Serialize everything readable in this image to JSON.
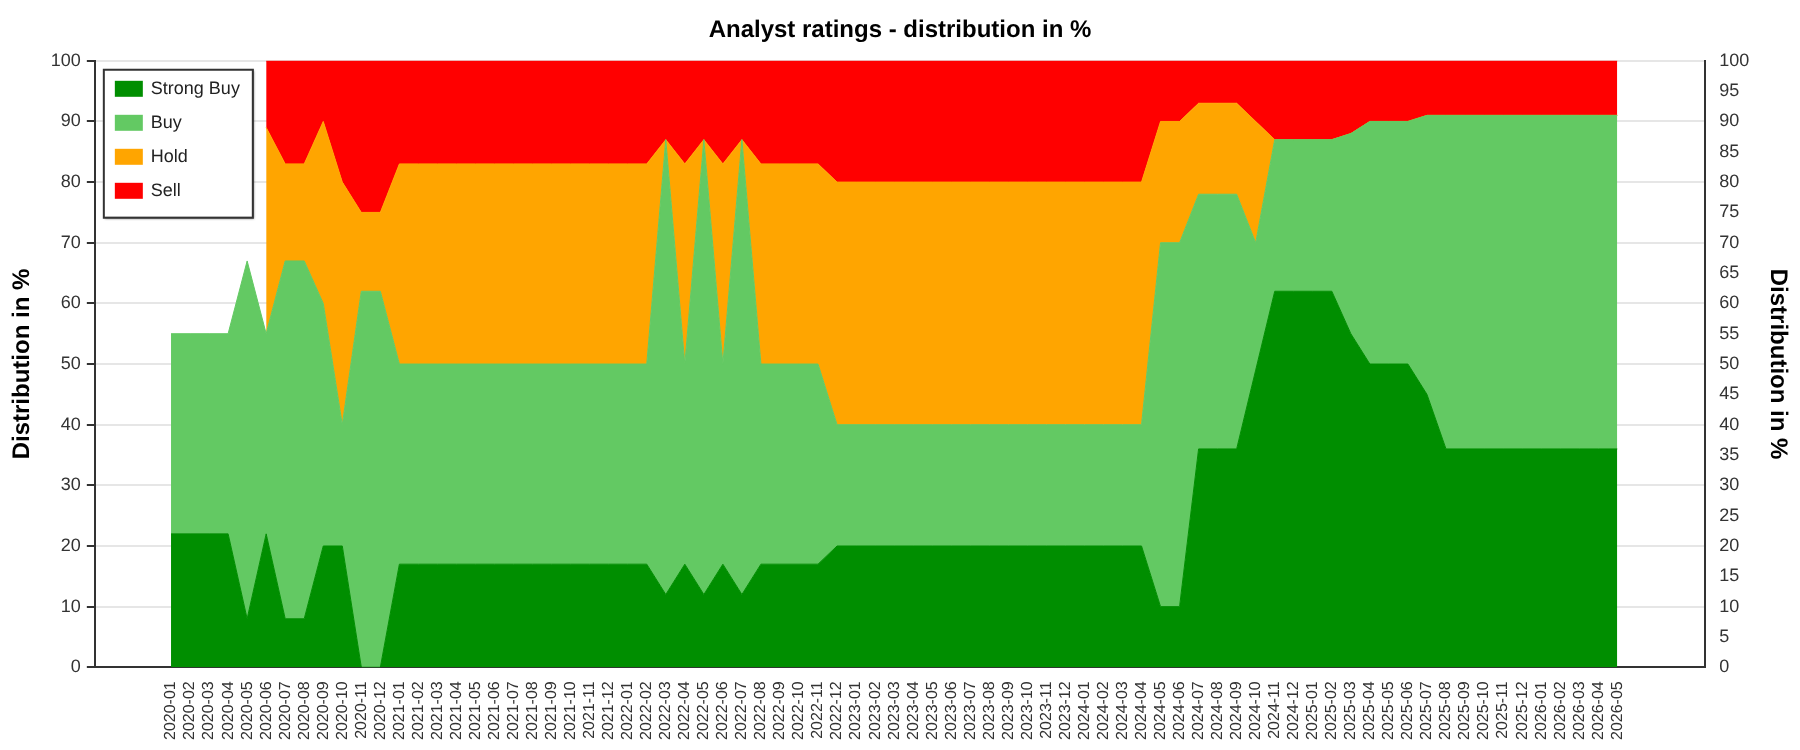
{
  "chart_data": {
    "type": "area",
    "stacked": true,
    "title": "Analyst ratings - distribution in %",
    "ylabel": "Distribution in %",
    "y2label": "Distribution in %",
    "categories": [
      "2020-01",
      "2020-02",
      "2020-03",
      "2020-04",
      "2020-05",
      "2020-06",
      "2020-07",
      "2020-08",
      "2020-09",
      "2020-10",
      "2020-11",
      "2020-12",
      "2021-01",
      "2021-02",
      "2021-03",
      "2021-04",
      "2021-05",
      "2021-06",
      "2021-07",
      "2021-08",
      "2021-09",
      "2021-10",
      "2021-11",
      "2021-12",
      "2022-01",
      "2022-02",
      "2022-03",
      "2022-04",
      "2022-05",
      "2022-06",
      "2022-07",
      "2022-08",
      "2022-09",
      "2022-10",
      "2022-11",
      "2022-12",
      "2023-01",
      "2023-02",
      "2023-03",
      "2023-04",
      "2023-05",
      "2023-06",
      "2023-07",
      "2023-08",
      "2023-09",
      "2023-10",
      "2023-11",
      "2023-12",
      "2024-01",
      "2024-02",
      "2024-03",
      "2024-04",
      "2024-05",
      "2024-06",
      "2024-07",
      "2024-08",
      "2024-09",
      "2024-10",
      "2024-11",
      "2024-12",
      "2025-01",
      "2025-02",
      "2025-03",
      "2025-04",
      "2025-05",
      "2025-06",
      "2025-07",
      "2025-08",
      "2025-09",
      "2025-10",
      "2025-11",
      "2025-12",
      "2026-01",
      "2026-02",
      "2026-03",
      "2026-04",
      "2026-05"
    ],
    "series": [
      {
        "name": "Strong Buy",
        "color": "#008e00",
        "values": [
          22,
          22,
          22,
          22,
          8,
          22,
          8,
          8,
          20,
          20,
          0,
          0,
          17,
          17,
          17,
          17,
          17,
          17,
          17,
          17,
          17,
          17,
          17,
          17,
          17,
          17,
          12,
          17,
          12,
          17,
          12,
          17,
          17,
          17,
          17,
          20,
          20,
          20,
          20,
          20,
          20,
          20,
          20,
          20,
          20,
          20,
          20,
          20,
          20,
          20,
          20,
          20,
          10,
          10,
          36,
          36,
          36,
          49,
          62,
          62,
          62,
          62,
          55,
          50,
          50,
          50,
          45,
          36,
          36,
          36,
          36,
          36,
          36,
          36,
          36,
          36,
          36
        ]
      },
      {
        "name": "Buy",
        "color": "#63c963",
        "values": [
          33,
          33,
          33,
          33,
          59,
          33,
          59,
          59,
          40,
          20,
          62,
          62,
          33,
          33,
          33,
          33,
          33,
          33,
          33,
          33,
          33,
          33,
          33,
          33,
          33,
          33,
          75,
          33,
          75,
          33,
          75,
          33,
          33,
          33,
          33,
          20,
          20,
          20,
          20,
          20,
          20,
          20,
          20,
          20,
          20,
          20,
          20,
          20,
          20,
          20,
          20,
          20,
          60,
          60,
          42,
          42,
          42,
          21,
          25,
          25,
          25,
          25,
          33,
          40,
          40,
          40,
          46,
          55,
          55,
          55,
          55,
          55,
          55,
          55,
          55,
          55,
          55
        ]
      },
      {
        "name": "Hold",
        "color": "#ffa500",
        "values": [
          null,
          null,
          null,
          null,
          null,
          34,
          16,
          16,
          30,
          40,
          13,
          13,
          33,
          33,
          33,
          33,
          33,
          33,
          33,
          33,
          33,
          33,
          33,
          33,
          33,
          33,
          0,
          33,
          0,
          33,
          0,
          33,
          33,
          33,
          33,
          40,
          40,
          40,
          40,
          40,
          40,
          40,
          40,
          40,
          40,
          40,
          40,
          40,
          40,
          40,
          40,
          40,
          20,
          20,
          15,
          15,
          15,
          20,
          0,
          0,
          0,
          0,
          0,
          0,
          0,
          0,
          0,
          0,
          0,
          0,
          0,
          0,
          0,
          0,
          0,
          0,
          0
        ]
      },
      {
        "name": "Sell",
        "color": "#ff0000",
        "values": [
          null,
          null,
          null,
          null,
          null,
          11,
          17,
          17,
          10,
          20,
          25,
          25,
          17,
          17,
          17,
          17,
          17,
          17,
          17,
          17,
          17,
          17,
          17,
          17,
          17,
          17,
          13,
          17,
          13,
          17,
          13,
          17,
          17,
          17,
          17,
          20,
          20,
          20,
          20,
          20,
          20,
          20,
          20,
          20,
          20,
          20,
          20,
          20,
          20,
          20,
          20,
          20,
          10,
          10,
          7,
          7,
          7,
          10,
          13,
          13,
          13,
          13,
          12,
          10,
          10,
          10,
          9,
          9,
          9,
          9,
          9,
          9,
          9,
          9,
          9,
          9,
          9
        ]
      }
    ],
    "ylim": [
      0,
      100
    ],
    "yticks": [
      0,
      10,
      20,
      30,
      40,
      50,
      60,
      70,
      80,
      90,
      100
    ],
    "y2lim": [
      0,
      100
    ],
    "y2ticks": [
      0,
      5,
      10,
      15,
      20,
      25,
      30,
      35,
      40,
      45,
      50,
      55,
      60,
      65,
      70,
      75,
      80,
      85,
      90,
      95,
      100
    ],
    "grid": "y",
    "legend": "top left"
  }
}
